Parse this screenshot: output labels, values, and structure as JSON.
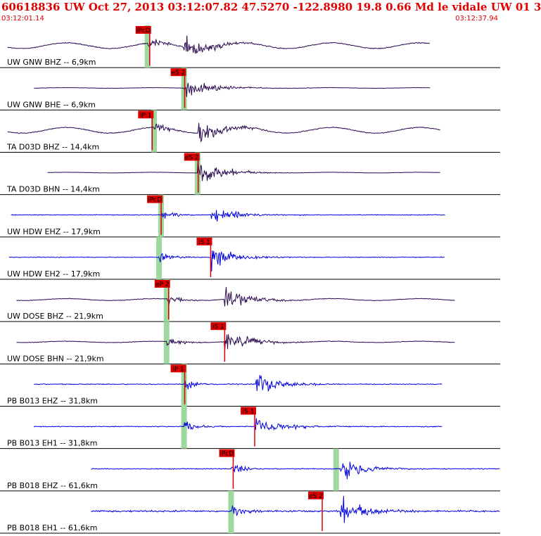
{
  "header": {
    "title": "60618836 UW Oct 27, 2013 03:12:07.82    47.5270 -122.8980 19.8 0.66 Md le vidale UW 01    3",
    "time_start": "03:12:01.14",
    "time_end": "03:12:37.94"
  },
  "colors": {
    "title": "#e00000",
    "trace_dark": "#2a0a50",
    "trace_blue": "#0000e0",
    "pick_red": "#dd0000",
    "window_green": "#9ed89e",
    "separator": "#000000"
  },
  "panels": [
    {
      "label": "UW GNW BHZ -- 6,9km",
      "pick": "iPcD",
      "style": "dark",
      "pick_t": 0.295,
      "green_t": 0.295,
      "arrival_t": 0.295,
      "s_t": 0.368,
      "end_t": 0.86,
      "noise": 0.3,
      "sine": 0.45,
      "amp": 0.95
    },
    {
      "label": "UW GNW BHE -- 6,9km",
      "pick": "eS 2",
      "style": "dark",
      "pick_t": 0.365,
      "green_t": 0.368,
      "arrival_t": 0.368,
      "s_t": 0.368,
      "end_t": 0.86,
      "noise": 0.12,
      "sine": 0.05,
      "amp": 0.95
    },
    {
      "label": "TA D03D BHZ -- 14,4km",
      "pick": "iP 1",
      "style": "dark",
      "pick_t": 0.3,
      "green_t": 0.308,
      "arrival_t": 0.308,
      "s_t": 0.395,
      "end_t": 0.88,
      "noise": 0.3,
      "sine": 0.45,
      "amp": 0.95
    },
    {
      "label": "TA D03D BHN -- 14,4km",
      "pick": "eS 2",
      "style": "dark",
      "pick_t": 0.392,
      "green_t": 0.395,
      "arrival_t": 0.395,
      "s_t": 0.395,
      "end_t": 0.88,
      "noise": 0.1,
      "sine": 0.05,
      "amp": 0.95
    },
    {
      "label": "UW HDW EHZ -- 17,9km",
      "pick": "iPcD",
      "style": "blue",
      "pick_t": 0.318,
      "green_t": 0.322,
      "arrival_t": 0.322,
      "s_t": 0.422,
      "end_t": 0.89,
      "noise": 0.25,
      "sine": 0.0,
      "amp": 0.75
    },
    {
      "label": "UW HDW EH2 -- 17,9km",
      "pick": "iS 1",
      "style": "blue",
      "pick_t": 0.417,
      "green_t": 0.318,
      "arrival_t": 0.318,
      "s_t": 0.422,
      "end_t": 0.89,
      "noise": 0.25,
      "sine": 0.0,
      "amp": 0.95
    },
    {
      "label": "UW DOSE BHZ -- 21,9km",
      "pick": "eP 2",
      "style": "dark",
      "pick_t": 0.333,
      "green_t": 0.333,
      "arrival_t": 0.333,
      "s_t": 0.448,
      "end_t": 0.91,
      "noise": 0.2,
      "sine": 0.15,
      "amp": 0.95
    },
    {
      "label": "UW DOSE BHN -- 21,9km",
      "pick": "iS 1",
      "style": "dark",
      "pick_t": 0.445,
      "green_t": 0.333,
      "arrival_t": 0.333,
      "s_t": 0.448,
      "end_t": 0.91,
      "noise": 0.2,
      "sine": 0.1,
      "amp": 0.95
    },
    {
      "label": "PB B013 EHZ -- 31,8km",
      "pick": "iP 1",
      "style": "blue",
      "pick_t": 0.365,
      "green_t": 0.368,
      "arrival_t": 0.368,
      "s_t": 0.51,
      "end_t": 0.885,
      "noise": 0.3,
      "sine": 0.0,
      "amp": 0.9
    },
    {
      "label": "PB B013 EH1 -- 31,8km",
      "pick": "iS 1",
      "style": "blue",
      "pick_t": 0.505,
      "green_t": 0.368,
      "arrival_t": 0.368,
      "s_t": 0.51,
      "end_t": 0.885,
      "noise": 0.3,
      "sine": 0.0,
      "amp": 0.95
    },
    {
      "label": "PB B018 EHZ -- 61,6km",
      "pick": "iPcD",
      "style": "blue",
      "pick_t": 0.462,
      "green_t": 0.672,
      "arrival_t": 0.462,
      "s_t": 0.68,
      "end_t": 1.0,
      "noise": 0.3,
      "sine": 0.0,
      "amp": 0.95
    },
    {
      "label": "PB B018 EH1 -- 61,6km",
      "pick": "eS 2",
      "style": "blue",
      "pick_t": 0.64,
      "green_t": 0.462,
      "arrival_t": 0.462,
      "s_t": 0.68,
      "end_t": 1.0,
      "noise": 0.6,
      "sine": 0.0,
      "amp": 1.0
    }
  ]
}
